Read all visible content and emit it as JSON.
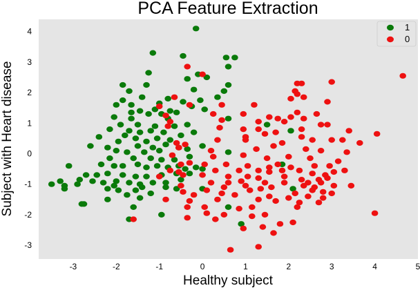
{
  "chart_data": {
    "type": "scatter",
    "title": "PCA Feature Extraction",
    "xlabel": "Healthy subject",
    "ylabel": "Subject with Heart disease",
    "xlim": [
      -3.8,
      5.0
    ],
    "ylim": [
      -3.45,
      4.4
    ],
    "xticks": [
      -3,
      -2,
      -1,
      0,
      1,
      2,
      3,
      4,
      5
    ],
    "yticks": [
      -3,
      -2,
      -1,
      0,
      1,
      2,
      3,
      4
    ],
    "grid": false,
    "background": "#e5e5e5",
    "legend_position": "top-right",
    "series": [
      {
        "name": "1",
        "color": "#0a7a0a",
        "points": [
          [
            -0.15,
            4.1
          ],
          [
            -1.15,
            3.3
          ],
          [
            -0.45,
            3.2
          ],
          [
            0.55,
            3.15
          ],
          [
            0.75,
            3.15
          ],
          [
            -1.25,
            2.65
          ],
          [
            0.6,
            2.85
          ],
          [
            -0.1,
            2.6
          ],
          [
            -0.35,
            2.45
          ],
          [
            0.1,
            2.5
          ],
          [
            0.6,
            2.25
          ],
          [
            -1.85,
            2.25
          ],
          [
            -1.3,
            2.25
          ],
          [
            0.5,
            2.05
          ],
          [
            -0.2,
            2.1
          ],
          [
            -1.7,
            2.05
          ],
          [
            -1.4,
            1.85
          ],
          [
            -1.85,
            1.75
          ],
          [
            0.35,
            1.85
          ],
          [
            -0.8,
            1.8
          ],
          [
            -0.05,
            1.75
          ],
          [
            -2.0,
            1.6
          ],
          [
            -1.65,
            1.6
          ],
          [
            -1.0,
            1.65
          ],
          [
            -0.45,
            1.7
          ],
          [
            -0.25,
            1.55
          ],
          [
            0.05,
            1.45
          ],
          [
            -1.65,
            1.35
          ],
          [
            -1.45,
            1.4
          ],
          [
            -1.1,
            1.45
          ],
          [
            -0.75,
            1.4
          ],
          [
            -0.95,
            1.3
          ],
          [
            -1.25,
            1.3
          ],
          [
            -0.6,
            1.35
          ],
          [
            -2.05,
            1.2
          ],
          [
            -1.65,
            1.15
          ],
          [
            -0.8,
            1.15
          ],
          [
            0.6,
            1.15
          ],
          [
            -1.9,
            0.95
          ],
          [
            -1.5,
            0.95
          ],
          [
            -1.1,
            0.9
          ],
          [
            -0.65,
            0.9
          ],
          [
            -0.35,
            0.95
          ],
          [
            1.5,
            0.95
          ],
          [
            -2.15,
            0.8
          ],
          [
            -1.7,
            0.75
          ],
          [
            -1.45,
            0.7
          ],
          [
            -1.2,
            0.75
          ],
          [
            -0.9,
            0.7
          ],
          [
            -0.5,
            0.6
          ],
          [
            -0.2,
            0.7
          ],
          [
            -1.8,
            0.6
          ],
          [
            -2.4,
            0.55
          ],
          [
            -1.55,
            0.5
          ],
          [
            -1.05,
            0.5
          ],
          [
            -0.75,
            0.45
          ],
          [
            -1.3,
            0.4
          ],
          [
            -1.95,
            0.4
          ],
          [
            -2.6,
            0.25
          ],
          [
            -2.2,
            0.2
          ],
          [
            -1.5,
            0.25
          ],
          [
            -1.15,
            0.2
          ],
          [
            -0.85,
            0.3
          ],
          [
            -0.55,
            0.2
          ],
          [
            -0.35,
            0.15
          ],
          [
            0.0,
            0.25
          ],
          [
            -2.0,
            0.1
          ],
          [
            -1.75,
            0.05
          ],
          [
            -1.35,
            0.05
          ],
          [
            -1.0,
            0.1
          ],
          [
            -2.15,
            -0.15
          ],
          [
            -1.6,
            -0.15
          ],
          [
            -1.2,
            -0.15
          ],
          [
            -0.95,
            -0.2
          ],
          [
            -0.65,
            -0.2
          ],
          [
            -0.3,
            -0.1
          ],
          [
            -2.35,
            -0.35
          ],
          [
            -2.05,
            -0.4
          ],
          [
            -1.85,
            -0.4
          ],
          [
            -1.5,
            -0.35
          ],
          [
            -1.3,
            -0.45
          ],
          [
            -1.05,
            -0.4
          ],
          [
            -0.8,
            -0.45
          ],
          [
            -0.55,
            -0.4
          ],
          [
            -0.4,
            -0.5
          ],
          [
            -0.15,
            -0.45
          ],
          [
            -3.1,
            -0.4
          ],
          [
            -2.7,
            -0.7
          ],
          [
            -2.45,
            -0.7
          ],
          [
            -2.2,
            -0.65
          ],
          [
            -1.85,
            -0.7
          ],
          [
            -1.55,
            -0.75
          ],
          [
            -1.3,
            -0.75
          ],
          [
            -0.95,
            -0.7
          ],
          [
            -0.6,
            -0.65
          ],
          [
            -0.3,
            -0.65
          ],
          [
            0.0,
            -0.5
          ],
          [
            -3.3,
            -0.9
          ],
          [
            -2.85,
            -0.85
          ],
          [
            -2.55,
            -0.9
          ],
          [
            -2.3,
            -0.95
          ],
          [
            -2.0,
            -0.9
          ],
          [
            -1.7,
            -0.95
          ],
          [
            -1.45,
            -1.0
          ],
          [
            -1.15,
            -0.95
          ],
          [
            -0.85,
            -0.95
          ],
          [
            -0.5,
            -0.85
          ],
          [
            -3.2,
            -1.05
          ],
          [
            -2.9,
            -1.0
          ],
          [
            -3.5,
            -1.0
          ],
          [
            -2.05,
            -1.05
          ],
          [
            -1.4,
            -1.1
          ],
          [
            -0.85,
            -1.1
          ],
          [
            -3.2,
            -1.15
          ],
          [
            -2.2,
            -1.15
          ],
          [
            -1.95,
            -1.2
          ],
          [
            -1.55,
            -1.2
          ],
          [
            -0.6,
            -1.15
          ],
          [
            0.0,
            -1.15
          ],
          [
            -1.75,
            -1.35
          ],
          [
            -1.2,
            -1.3
          ],
          [
            -1.45,
            -1.45
          ],
          [
            -2.2,
            -1.5
          ],
          [
            -1.6,
            -1.75
          ],
          [
            -2.75,
            -1.65
          ],
          [
            -2.8,
            -1.65
          ],
          [
            -1.7,
            -2.15
          ],
          [
            -0.95,
            -2.0
          ],
          [
            0.6,
            -1.75
          ],
          [
            0.9,
            -2.3
          ],
          [
            2.1,
            -1.15
          ],
          [
            1.85,
            -0.35
          ],
          [
            0.6,
            0.05
          ],
          [
            2.05,
            0.75
          ]
        ]
      },
      {
        "name": "0",
        "color": "#ee1111",
        "points": [
          [
            4.65,
            2.55
          ],
          [
            -0.35,
            2.85
          ],
          [
            0.0,
            2.6
          ],
          [
            2.2,
            2.3
          ],
          [
            2.3,
            2.3
          ],
          [
            3.0,
            2.35
          ],
          [
            2.15,
            2.05
          ],
          [
            2.2,
            1.95
          ],
          [
            2.05,
            1.8
          ],
          [
            -0.65,
            1.85
          ],
          [
            -0.3,
            1.6
          ],
          [
            0.45,
            1.6
          ],
          [
            1.2,
            1.6
          ],
          [
            2.35,
            1.85
          ],
          [
            2.9,
            1.7
          ],
          [
            -1.0,
            1.55
          ],
          [
            -0.85,
            1.25
          ],
          [
            0.25,
            1.3
          ],
          [
            0.95,
            1.3
          ],
          [
            1.55,
            1.2
          ],
          [
            1.75,
            1.15
          ],
          [
            2.2,
            1.35
          ],
          [
            2.35,
            1.15
          ],
          [
            2.65,
            1.3
          ],
          [
            -0.75,
            1.05
          ],
          [
            0.45,
            1.1
          ],
          [
            1.3,
            1.05
          ],
          [
            1.9,
            1.05
          ],
          [
            2.05,
            1.2
          ],
          [
            2.75,
            0.95
          ],
          [
            2.9,
            0.95
          ],
          [
            -0.8,
            0.9
          ],
          [
            0.4,
            0.85
          ],
          [
            0.95,
            0.8
          ],
          [
            1.3,
            0.8
          ],
          [
            1.7,
            0.7
          ],
          [
            2.3,
            0.8
          ],
          [
            3.4,
            0.75
          ],
          [
            1.0,
            0.55
          ],
          [
            1.45,
            0.65
          ],
          [
            2.3,
            0.55
          ],
          [
            2.55,
            0.45
          ],
          [
            3.25,
            0.45
          ],
          [
            4.05,
            0.65
          ],
          [
            -0.6,
            0.35
          ],
          [
            -0.4,
            0.3
          ],
          [
            0.35,
            0.45
          ],
          [
            1.0,
            0.45
          ],
          [
            1.85,
            0.35
          ],
          [
            3.0,
            0.45
          ],
          [
            3.65,
            0.35
          ],
          [
            -0.55,
            0.2
          ],
          [
            0.2,
            0.1
          ],
          [
            1.25,
            0.15
          ],
          [
            1.65,
            0.25
          ],
          [
            2.4,
            0.15
          ],
          [
            2.75,
            0.1
          ],
          [
            3.35,
            0.05
          ],
          [
            -0.7,
            -0.05
          ],
          [
            0.25,
            -0.1
          ],
          [
            0.95,
            -0.05
          ],
          [
            1.5,
            -0.15
          ],
          [
            2.0,
            -0.1
          ],
          [
            2.5,
            -0.15
          ],
          [
            3.15,
            -0.25
          ],
          [
            -0.5,
            -0.35
          ],
          [
            -0.3,
            -0.3
          ],
          [
            0.05,
            -0.35
          ],
          [
            0.55,
            -0.35
          ],
          [
            1.05,
            -0.4
          ],
          [
            1.55,
            -0.45
          ],
          [
            1.75,
            -0.35
          ],
          [
            2.05,
            -0.45
          ],
          [
            2.6,
            -0.4
          ],
          [
            2.95,
            -0.4
          ],
          [
            -0.75,
            -0.55
          ],
          [
            -0.55,
            -0.6
          ],
          [
            0.3,
            -0.55
          ],
          [
            0.85,
            -0.55
          ],
          [
            1.3,
            -0.55
          ],
          [
            1.55,
            -0.6
          ],
          [
            1.85,
            -0.55
          ],
          [
            2.25,
            -0.55
          ],
          [
            2.55,
            -0.65
          ],
          [
            2.85,
            -0.7
          ],
          [
            3.05,
            -0.6
          ],
          [
            3.3,
            -0.55
          ],
          [
            -1.0,
            -0.75
          ],
          [
            -0.45,
            -0.7
          ],
          [
            0.0,
            -0.7
          ],
          [
            0.6,
            -0.75
          ],
          [
            1.05,
            -0.75
          ],
          [
            1.3,
            -0.8
          ],
          [
            1.9,
            -0.75
          ],
          [
            2.3,
            -0.85
          ],
          [
            2.7,
            -0.85
          ],
          [
            2.9,
            -0.8
          ],
          [
            0.2,
            -0.95
          ],
          [
            0.6,
            -0.95
          ],
          [
            0.9,
            -0.9
          ],
          [
            1.45,
            -0.95
          ],
          [
            1.9,
            -0.95
          ],
          [
            2.45,
            -0.95
          ],
          [
            2.75,
            -0.95
          ],
          [
            -0.5,
            -1.05
          ],
          [
            0.5,
            -1.1
          ],
          [
            1.0,
            -1.05
          ],
          [
            1.6,
            -1.1
          ],
          [
            2.35,
            -1.05
          ],
          [
            2.6,
            -1.1
          ],
          [
            3.05,
            -1.05
          ],
          [
            3.45,
            -1.05
          ],
          [
            -0.45,
            -1.25
          ],
          [
            0.1,
            -1.2
          ],
          [
            0.45,
            -1.3
          ],
          [
            1.1,
            -1.2
          ],
          [
            1.35,
            -1.15
          ],
          [
            2.15,
            -1.3
          ],
          [
            2.55,
            -1.2
          ],
          [
            2.8,
            -1.25
          ],
          [
            3.0,
            -1.3
          ],
          [
            -0.2,
            -1.35
          ],
          [
            0.75,
            -1.35
          ],
          [
            1.55,
            -1.4
          ],
          [
            2.0,
            -1.45
          ],
          [
            2.45,
            -1.4
          ],
          [
            2.8,
            -1.45
          ],
          [
            -0.85,
            -1.5
          ],
          [
            -0.3,
            -1.55
          ],
          [
            0.35,
            -1.5
          ],
          [
            1.3,
            -1.5
          ],
          [
            1.7,
            -1.55
          ],
          [
            2.25,
            -1.6
          ],
          [
            2.7,
            -1.6
          ],
          [
            -0.35,
            -1.75
          ],
          [
            0.05,
            -1.75
          ],
          [
            0.85,
            -1.8
          ],
          [
            1.15,
            -1.75
          ],
          [
            2.2,
            -1.75
          ],
          [
            0.1,
            -1.95
          ],
          [
            0.5,
            -2.0
          ],
          [
            1.15,
            -2.05
          ],
          [
            1.45,
            -2.0
          ],
          [
            4.0,
            -1.95
          ],
          [
            -1.6,
            -2.15
          ],
          [
            -0.35,
            -2.1
          ],
          [
            0.3,
            -2.15
          ],
          [
            0.95,
            -2.45
          ],
          [
            1.4,
            -2.4
          ],
          [
            1.8,
            -2.3
          ],
          [
            2.1,
            -2.25
          ],
          [
            1.65,
            -2.6
          ],
          [
            1.3,
            -3.05
          ],
          [
            0.65,
            -3.15
          ]
        ]
      }
    ]
  }
}
